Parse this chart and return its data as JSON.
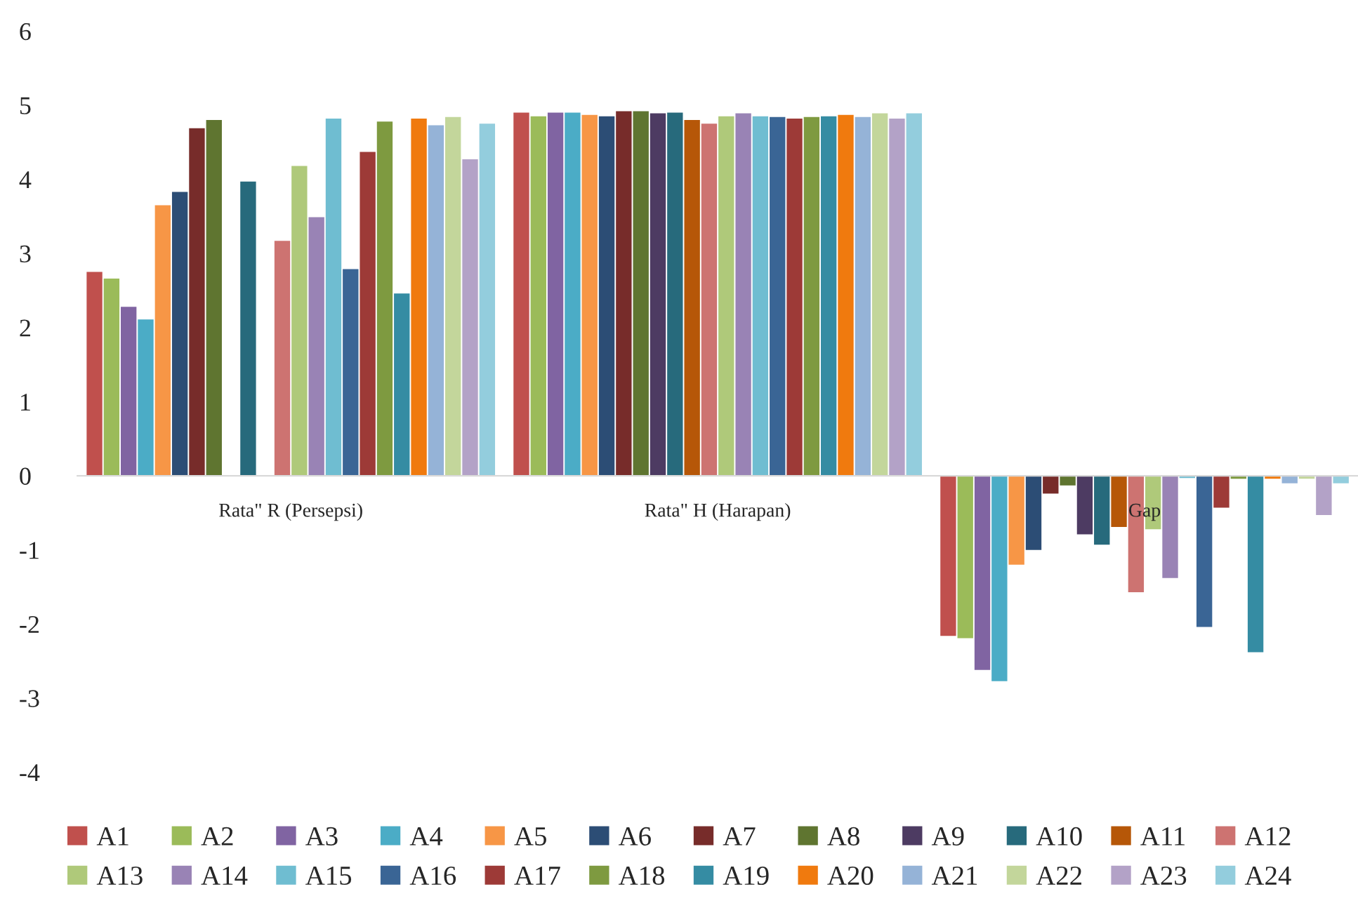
{
  "chart_data": {
    "type": "bar",
    "categories": [
      "Rata\" R (Persepsi)",
      "Rata\" H (Harapan)",
      "Gap"
    ],
    "ylim": [
      -4,
      6
    ],
    "yticks": [
      -4,
      -3,
      -2,
      -1,
      0,
      1,
      2,
      3,
      4,
      5,
      6
    ],
    "legend": "bottom",
    "series": [
      {
        "name": "A1",
        "color": "#c0504d",
        "values": [
          2.75,
          4.9,
          -2.16
        ]
      },
      {
        "name": "A2",
        "color": "#9bbb59",
        "values": [
          2.66,
          4.85,
          -2.19
        ]
      },
      {
        "name": "A3",
        "color": "#8064a2",
        "values": [
          2.28,
          4.9,
          -2.62
        ]
      },
      {
        "name": "A4",
        "color": "#4bacc6",
        "values": [
          2.11,
          4.9,
          -2.77
        ]
      },
      {
        "name": "A5",
        "color": "#f79646",
        "values": [
          3.65,
          4.87,
          -1.2
        ]
      },
      {
        "name": "A6",
        "color": "#2c4d75",
        "values": [
          3.83,
          4.85,
          -1.0
        ]
      },
      {
        "name": "A7",
        "color": "#772c2a",
        "values": [
          4.69,
          4.92,
          -0.24
        ]
      },
      {
        "name": "A8",
        "color": "#5f7530",
        "values": [
          4.8,
          4.92,
          -0.13
        ]
      },
      {
        "name": "A9",
        "color": "#4d3b62",
        "values": [
          null,
          4.89,
          -0.79
        ]
      },
      {
        "name": "A10",
        "color": "#276a7c",
        "values": [
          3.97,
          4.9,
          -0.93
        ]
      },
      {
        "name": "A11",
        "color": "#b65708",
        "values": [
          null,
          4.8,
          -0.69
        ]
      },
      {
        "name": "A12",
        "color": "#cd7371",
        "values": [
          3.17,
          4.75,
          -1.57
        ]
      },
      {
        "name": "A13",
        "color": "#afc97a",
        "values": [
          4.18,
          4.85,
          -0.72
        ]
      },
      {
        "name": "A14",
        "color": "#9983b5",
        "values": [
          3.49,
          4.89,
          -1.38
        ]
      },
      {
        "name": "A15",
        "color": "#6fbdd1",
        "values": [
          4.82,
          4.85,
          -0.03
        ]
      },
      {
        "name": "A16",
        "color": "#3a6595",
        "values": [
          2.79,
          4.84,
          -2.04
        ]
      },
      {
        "name": "A17",
        "color": "#9d3a37",
        "values": [
          4.37,
          4.82,
          -0.43
        ]
      },
      {
        "name": "A18",
        "color": "#7e9a40",
        "values": [
          4.78,
          4.84,
          -0.04
        ]
      },
      {
        "name": "A19",
        "color": "#358ca3",
        "values": [
          2.46,
          4.85,
          -2.38
        ]
      },
      {
        "name": "A20",
        "color": "#f07a0e",
        "values": [
          4.82,
          4.87,
          -0.04
        ]
      },
      {
        "name": "A21",
        "color": "#95b3d7",
        "values": [
          4.73,
          4.84,
          -0.1
        ]
      },
      {
        "name": "A22",
        "color": "#c3d69b",
        "values": [
          4.84,
          4.89,
          -0.04
        ]
      },
      {
        "name": "A23",
        "color": "#b3a2c7",
        "values": [
          4.27,
          4.82,
          -0.53
        ]
      },
      {
        "name": "A24",
        "color": "#93cddd",
        "values": [
          4.75,
          4.89,
          -0.1
        ]
      }
    ]
  }
}
